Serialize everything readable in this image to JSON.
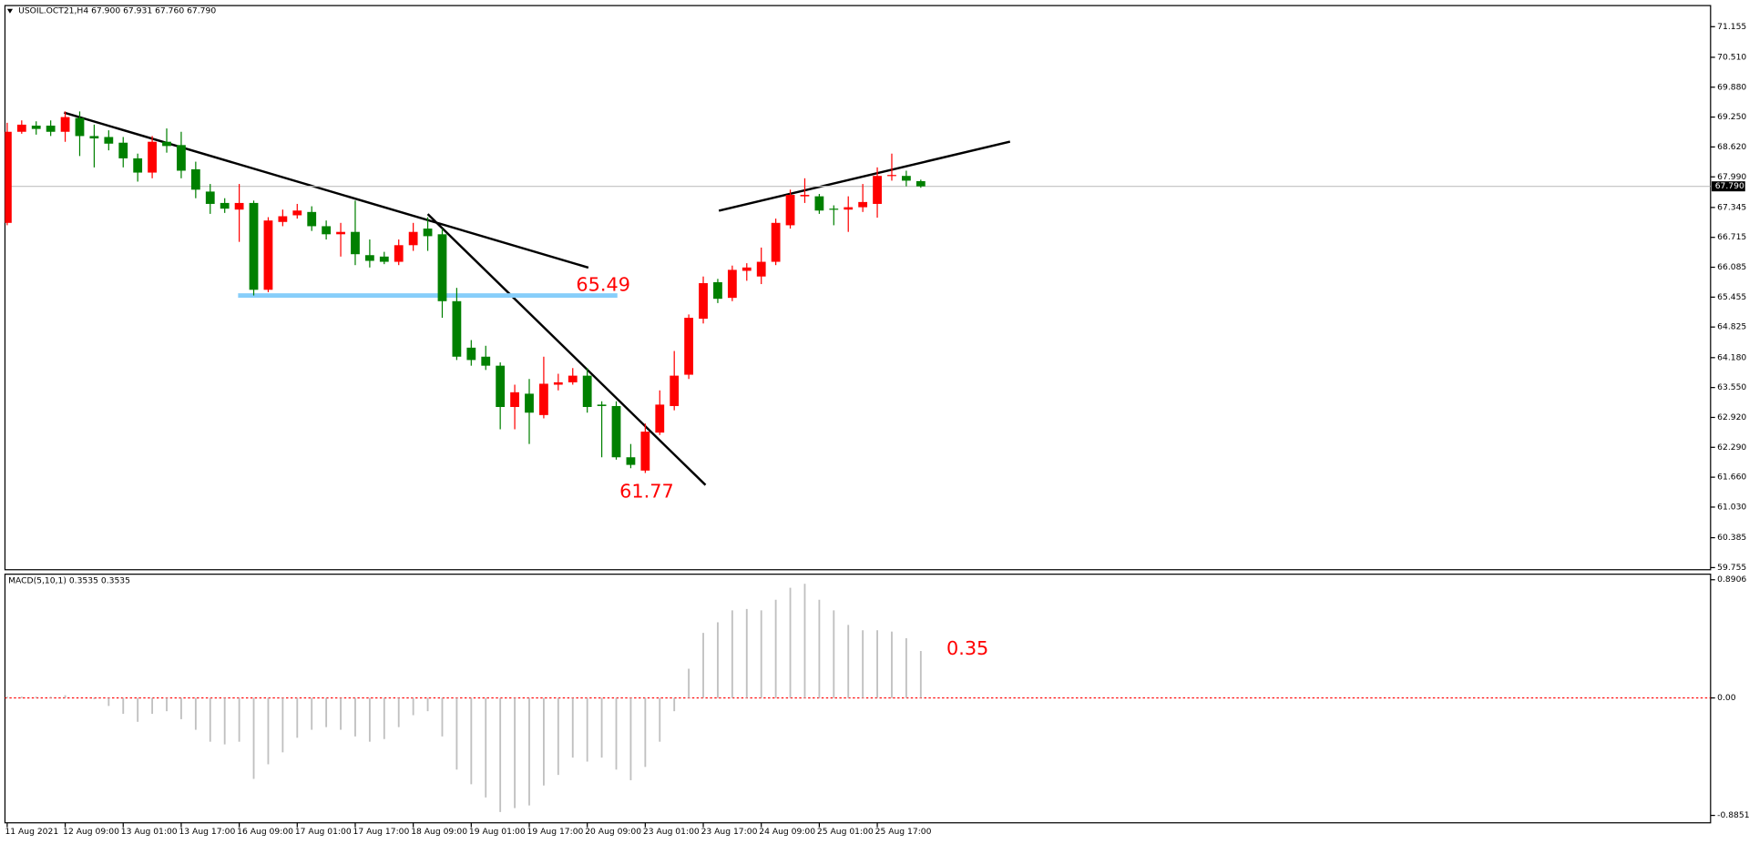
{
  "chart_data": [
    {
      "type": "candlestick",
      "title": "USOIL.OCT21,H4  67.900 67.931 67.760 67.790",
      "x": [
        "11 Aug 2021",
        null,
        null,
        null,
        "12 Aug 09:00",
        null,
        null,
        null,
        "13 Aug 01:00",
        null,
        null,
        null,
        "13 Aug 17:00",
        null,
        null,
        null,
        "16 Aug 09:00",
        null,
        null,
        null,
        "17 Aug 01:00",
        null,
        null,
        null,
        "17 Aug 17:00",
        null,
        null,
        null,
        "18 Aug 09:00",
        null,
        null,
        null,
        "19 Aug 01:00",
        null,
        null,
        null,
        "19 Aug 17:00",
        null,
        null,
        null,
        "20 Aug 09:00",
        null,
        null,
        null,
        "23 Aug 01:00",
        null,
        null,
        null,
        "23 Aug 17:00",
        null,
        null,
        null,
        "24 Aug 09:00",
        null,
        null,
        null,
        "25 Aug 01:00",
        null,
        null,
        null,
        "25 Aug 17:00",
        null,
        null,
        null
      ],
      "open": [
        67.02,
        68.94,
        69.07,
        69.07,
        68.94,
        69.23,
        68.85,
        68.83,
        68.71,
        68.38,
        68.08,
        68.73,
        68.66,
        68.15,
        67.68,
        67.44,
        67.3,
        67.44,
        65.61,
        67.04,
        67.18,
        67.25,
        66.95,
        66.78,
        66.83,
        66.34,
        66.31,
        66.2,
        66.55,
        66.9,
        66.78,
        65.37,
        64.39,
        64.2,
        64.01,
        63.14,
        63.42,
        62.97,
        63.61,
        63.66,
        63.8,
        63.19,
        63.16,
        62.08,
        61.8,
        62.6,
        63.16,
        63.82,
        65.0,
        65.77,
        65.44,
        66.01,
        65.89,
        66.2,
        66.97,
        67.58,
        67.58,
        67.32,
        67.3,
        67.35,
        67.42,
        68.01,
        68.01,
        67.9
      ],
      "high": [
        69.13,
        69.18,
        69.16,
        69.18,
        69.37,
        69.37,
        69.09,
        68.97,
        68.83,
        68.48,
        68.85,
        69.01,
        68.94,
        68.31,
        67.84,
        67.54,
        67.84,
        67.49,
        67.14,
        67.3,
        67.42,
        67.37,
        67.07,
        67.02,
        67.49,
        66.67,
        66.41,
        66.67,
        67.02,
        67.14,
        66.9,
        65.65,
        64.55,
        64.43,
        64.08,
        63.61,
        63.73,
        64.2,
        63.84,
        63.96,
        63.96,
        63.26,
        63.26,
        62.36,
        62.79,
        63.49,
        64.32,
        65.09,
        65.89,
        65.84,
        66.12,
        66.17,
        66.5,
        67.11,
        67.72,
        67.96,
        67.63,
        67.39,
        67.58,
        67.84,
        68.19,
        68.48,
        68.12,
        67.931
      ],
      "low": [
        66.97,
        68.9,
        68.88,
        68.85,
        68.73,
        68.43,
        68.19,
        68.55,
        68.19,
        67.89,
        67.96,
        68.5,
        67.96,
        67.54,
        67.21,
        67.23,
        66.62,
        65.49,
        65.56,
        66.95,
        67.11,
        66.85,
        66.67,
        66.31,
        66.13,
        66.08,
        66.15,
        66.13,
        66.43,
        66.43,
        65.02,
        64.13,
        64.01,
        63.92,
        62.67,
        62.67,
        62.36,
        62.9,
        63.49,
        63.61,
        63.02,
        62.08,
        62.03,
        61.85,
        61.75,
        62.55,
        63.07,
        63.73,
        64.9,
        65.33,
        65.37,
        65.8,
        65.73,
        66.13,
        66.9,
        67.44,
        67.21,
        66.97,
        66.83,
        67.25,
        67.13,
        67.91,
        67.79,
        67.76
      ],
      "close": [
        68.94,
        69.09,
        69.0,
        68.94,
        69.25,
        68.85,
        68.8,
        68.69,
        68.38,
        68.08,
        68.73,
        68.64,
        68.12,
        67.72,
        67.42,
        67.32,
        67.44,
        65.61,
        67.07,
        67.16,
        67.28,
        66.95,
        66.78,
        66.83,
        66.36,
        66.22,
        66.2,
        66.55,
        66.83,
        66.74,
        65.37,
        64.2,
        64.13,
        64.01,
        63.14,
        63.45,
        63.02,
        63.63,
        63.66,
        63.8,
        63.14,
        63.16,
        62.08,
        61.92,
        62.62,
        63.19,
        63.8,
        65.02,
        65.75,
        65.42,
        66.03,
        66.08,
        66.2,
        67.02,
        67.61,
        67.61,
        67.28,
        67.3,
        67.35,
        67.46,
        68.01,
        68.03,
        67.91,
        67.79
      ],
      "up_color": "#ff0000",
      "down_color": "#008000",
      "ylim": [
        59.71,
        71.6
      ],
      "yticks": [
        71.155,
        {
          "value": 70.51,
          "label": "70.510"
        },
        {
          "value": 69.88,
          "label": "69.880"
        },
        {
          "value": 69.25,
          "label": "69.250"
        },
        {
          "value": 68.62,
          "label": "68.620"
        },
        {
          "value": 67.99,
          "label": "67.990"
        },
        67.345,
        66.715,
        66.085,
        65.455,
        64.825,
        {
          "value": 64.18,
          "label": "64.180"
        },
        {
          "value": 63.55,
          "label": "63.550"
        },
        {
          "value": 62.92,
          "label": "62.920"
        },
        {
          "value": 62.29,
          "label": "62.290"
        },
        {
          "value": 61.66,
          "label": "61.660"
        },
        {
          "value": 61.03,
          "label": "61.030"
        },
        60.385,
        59.755
      ],
      "current_price": {
        "value": 67.79,
        "label": "67.790"
      },
      "levels": [
        65.49,
        61.77
      ],
      "level_color": "#87cefa",
      "annotation_color": "#ff0000"
    },
    {
      "type": "histogram",
      "title": "MACD(5,10,1) 0.3535 0.3535",
      "values": [
        0.01,
        0.01,
        0.01,
        0.01,
        0.02,
        0,
        -0.01,
        -0.06,
        -0.12,
        -0.18,
        -0.12,
        -0.1,
        -0.16,
        -0.24,
        -0.33,
        -0.35,
        -0.33,
        -0.61,
        -0.5,
        -0.41,
        -0.3,
        -0.24,
        -0.22,
        -0.24,
        -0.29,
        -0.33,
        -0.31,
        -0.22,
        -0.13,
        -0.1,
        -0.29,
        -0.54,
        -0.65,
        -0.75,
        -0.86,
        -0.83,
        -0.81,
        -0.66,
        -0.58,
        -0.45,
        -0.48,
        -0.45,
        -0.54,
        -0.62,
        -0.52,
        -0.33,
        -0.1,
        0.22,
        0.49,
        0.57,
        0.66,
        0.67,
        0.66,
        0.74,
        0.83,
        0.86,
        0.74,
        0.66,
        0.55,
        0.51,
        0.51,
        0.5,
        0.45,
        0.3535
      ],
      "color": "#c0c0c0",
      "zero_color": "#ff0000",
      "ylim": [
        -0.941,
        0.924
      ],
      "yticks": [
        0.8906,
        {
          "value": 0,
          "label": "0.00"
        },
        -0.8851
      ],
      "annotation": 0.35,
      "annotation_color": "#ff0000"
    }
  ]
}
